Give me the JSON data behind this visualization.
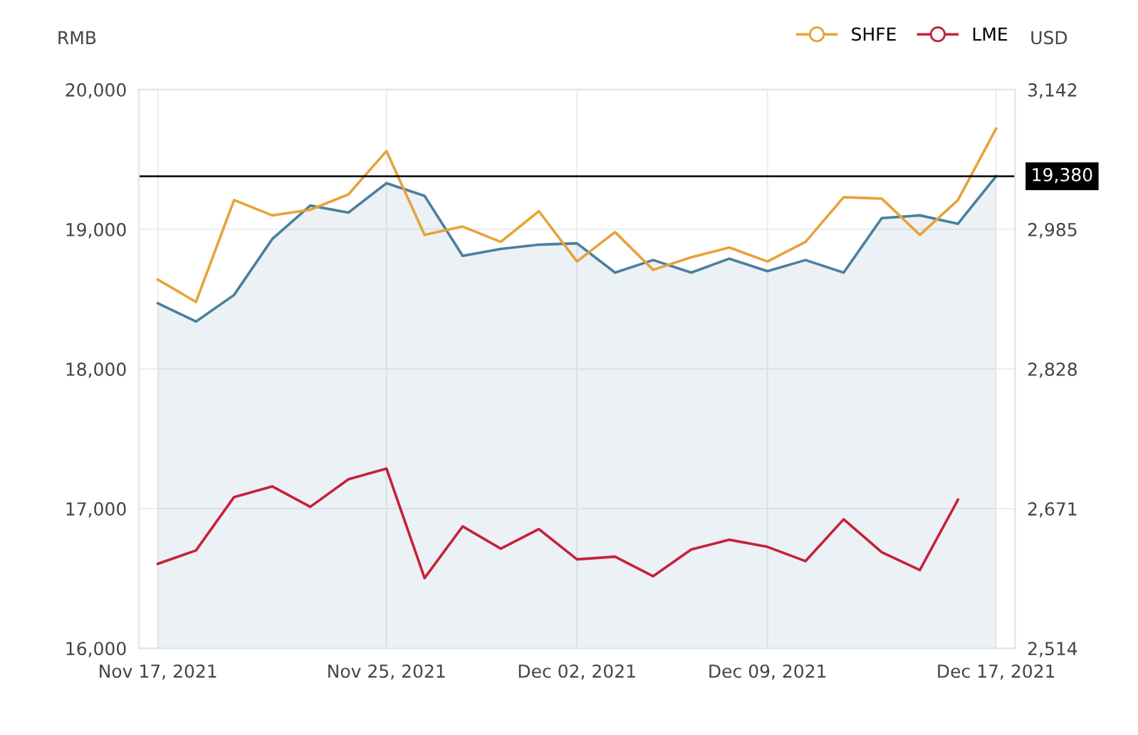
{
  "chart_data": {
    "type": "line",
    "ylabel": "RMB",
    "y2label": "USD",
    "categories": [
      "Nov 17, 2021",
      null,
      null,
      null,
      null,
      null,
      "Nov 25, 2021",
      null,
      null,
      null,
      null,
      "Dec 02, 2021",
      null,
      null,
      null,
      null,
      "Dec 09, 2021",
      null,
      null,
      null,
      null,
      null,
      "Dec 17, 2021"
    ],
    "series": [
      {
        "type": "area",
        "color": "#4a7fa0",
        "values": [
          18470,
          18340,
          18530,
          18930,
          19170,
          19120,
          19330,
          19240,
          18810,
          18860,
          18890,
          18900,
          18690,
          18780,
          18690,
          18790,
          18700,
          18780,
          18690,
          19080,
          19100,
          19040,
          19380
        ]
      },
      {
        "name": "SHFE",
        "color": "#e8a23a",
        "values": [
          18640,
          18480,
          19210,
          19100,
          19140,
          19250,
          19560,
          18960,
          19020,
          18910,
          19130,
          18770,
          18980,
          18710,
          18800,
          18870,
          18770,
          18910,
          19230,
          19220,
          18960,
          19210,
          19720
        ]
      },
      {
        "name": "LME",
        "color": "#c8203a",
        "axis": "y2",
        "values": [
          2609,
          2624,
          2684,
          2696,
          2673,
          2704,
          2716,
          2593,
          2651,
          2626,
          2648,
          2614,
          2617,
          2595,
          2625,
          2636,
          2628,
          2612,
          2659,
          2622,
          2602,
          2681,
          null
        ]
      }
    ],
    "ylim": [
      16000,
      20000
    ],
    "yticks": [
      {
        "value": 16000,
        "label": "16,000"
      },
      {
        "value": 17000,
        "label": "17,000"
      },
      {
        "value": 18000,
        "label": "18,000"
      },
      {
        "value": 19000,
        "label": "19,000"
      },
      {
        "value": 20000,
        "label": "20,000"
      }
    ],
    "y2lim": [
      2514,
      3142
    ],
    "y2ticks": [
      {
        "value": 2514,
        "label": "2,514"
      },
      {
        "value": 2671,
        "label": "2,671"
      },
      {
        "value": 2828,
        "label": "2,828"
      },
      {
        "value": 2985,
        "label": "2,985"
      },
      {
        "value": 3142,
        "label": "3,142"
      }
    ],
    "ref_lines": [
      {
        "axis": "y",
        "value": 19380,
        "label": "19,380",
        "color": "#000000"
      }
    ],
    "grid": true,
    "legend": "top right",
    "line_style": "solid"
  }
}
